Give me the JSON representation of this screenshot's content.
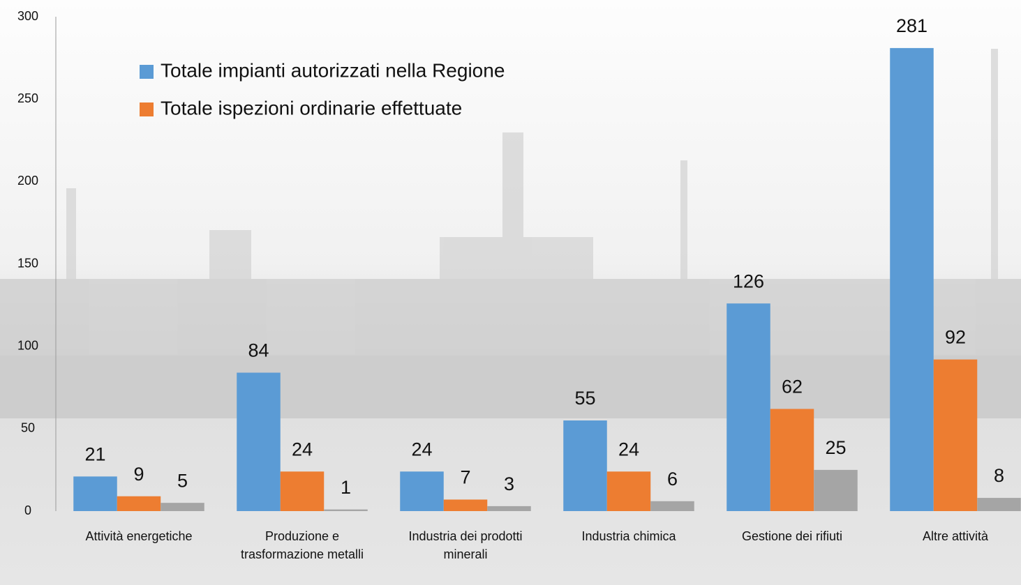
{
  "chart_data": {
    "type": "bar",
    "categories": [
      "Attività energetiche",
      "Produzione e trasformazione metalli",
      "Industria dei prodotti minerali",
      "Industria chimica",
      "Gestione dei rifiuti",
      "Altre attività"
    ],
    "series": [
      {
        "name": "Totale impianti autorizzati nella Regione",
        "color": "#5b9bd5",
        "values": [
          21,
          84,
          24,
          55,
          126,
          281
        ]
      },
      {
        "name": "Totale ispezioni ordinarie effettuate",
        "color": "#ed7d31",
        "values": [
          9,
          24,
          7,
          24,
          62,
          92
        ]
      },
      {
        "color": "#a5a5a5",
        "values": [
          5,
          1,
          3,
          6,
          25,
          8
        ]
      }
    ],
    "ylim": [
      0,
      300
    ],
    "yticks": [
      0,
      50,
      100,
      150,
      200,
      250,
      300
    ],
    "grid": false
  }
}
